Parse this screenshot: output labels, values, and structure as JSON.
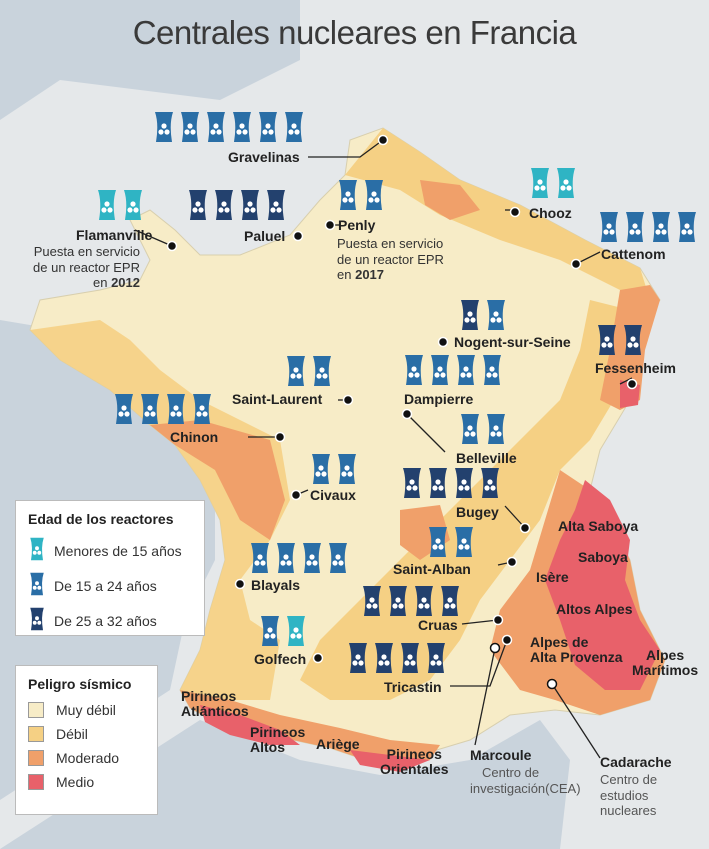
{
  "title": "Centrales nucleares en Francia",
  "colors": {
    "muy_debil": "#f7ecc7",
    "debil": "#f5d084",
    "moderado": "#f0a06a",
    "medio": "#e8616a",
    "reactor_menor15": "#2fb4c4",
    "reactor_15a24": "#2a6ea6",
    "reactor_25a32": "#23416e",
    "sea": "#c9d3dc",
    "land_outside": "#e5e8ea"
  },
  "plants": [
    {
      "name": "Gravelinas",
      "reactors": [
        "mid",
        "mid",
        "mid",
        "mid",
        "mid",
        "mid"
      ]
    },
    {
      "name": "Flamanville",
      "reactors": [
        "new",
        "new"
      ]
    },
    {
      "name": "Paluel",
      "reactors": [
        "old",
        "old",
        "old",
        "old"
      ]
    },
    {
      "name": "Penly",
      "reactors": [
        "mid",
        "mid"
      ]
    },
    {
      "name": "Chooz",
      "reactors": [
        "new",
        "new"
      ]
    },
    {
      "name": "Cattenom",
      "reactors": [
        "mid",
        "mid",
        "mid",
        "mid"
      ]
    },
    {
      "name": "Nogent-sur-Seine",
      "reactors": [
        "old",
        "mid"
      ]
    },
    {
      "name": "Fessenheim",
      "reactors": [
        "old",
        "old"
      ]
    },
    {
      "name": "Saint-Laurent",
      "reactors": [
        "mid",
        "mid"
      ]
    },
    {
      "name": "Dampierre",
      "reactors": [
        "mid",
        "mid",
        "mid",
        "mid"
      ]
    },
    {
      "name": "Chinon",
      "reactors": [
        "mid",
        "mid",
        "mid",
        "mid"
      ]
    },
    {
      "name": "Belleville",
      "reactors": [
        "mid",
        "mid"
      ]
    },
    {
      "name": "Civaux",
      "reactors": [
        "mid",
        "mid"
      ]
    },
    {
      "name": "Bugey",
      "reactors": [
        "old",
        "old",
        "old",
        "old"
      ]
    },
    {
      "name": "Saint-Alban",
      "reactors": [
        "mid",
        "mid"
      ]
    },
    {
      "name": "Blayals",
      "reactors": [
        "mid",
        "mid",
        "mid",
        "mid"
      ]
    },
    {
      "name": "Cruas",
      "reactors": [
        "old",
        "old",
        "old",
        "old"
      ]
    },
    {
      "name": "Golfech",
      "reactors": [
        "mid",
        "new"
      ]
    },
    {
      "name": "Tricastin",
      "reactors": [
        "old",
        "old",
        "old",
        "old"
      ]
    }
  ],
  "notes": {
    "flamanville": [
      "Puesta en servicio",
      "de un reactor EPR",
      "en",
      "2012"
    ],
    "penly": [
      "Puesta en servicio",
      "de un reactor EPR",
      "en",
      "2017"
    ],
    "marcoule_name": "Marcoule",
    "marcoule_sub": [
      "Centro de",
      "investigación(CEA)"
    ],
    "cadarache_name": "Cadarache",
    "cadarache_sub": [
      "Centro de",
      "estudios",
      "nucleares"
    ]
  },
  "regions": {
    "alta_saboya": "Alta Saboya",
    "saboya": "Saboya",
    "isere": "Isère",
    "altos_alpes": "Altos Alpes",
    "alpes_alta_provenza": [
      "Alpes de",
      "Alta Provenza"
    ],
    "alpes_maritimos": [
      "Alpes",
      "Marítimos"
    ],
    "pirineos_atlanticos": [
      "Pirineos",
      "Atlánticos"
    ],
    "pirineos_altos": [
      "Pirineos",
      "Altos"
    ],
    "ariege": "Ariège",
    "pirineos_orientales": [
      "Pirineos",
      "Orientales"
    ]
  },
  "legend_age": {
    "title": "Edad de los reactores",
    "items": [
      {
        "label": "Menores de 15 años",
        "type": "new"
      },
      {
        "label": "De 15 a 24 años",
        "type": "mid"
      },
      {
        "label": "De 25 a 32 años",
        "type": "old"
      }
    ]
  },
  "legend_seismic": {
    "title": "Peligro sísmico",
    "items": [
      {
        "label": "Muy débil",
        "color": "#f7ecc7"
      },
      {
        "label": "Débil",
        "color": "#f5d084"
      },
      {
        "label": "Moderado",
        "color": "#f0a06a"
      },
      {
        "label": "Medio",
        "color": "#e8616a"
      }
    ]
  }
}
